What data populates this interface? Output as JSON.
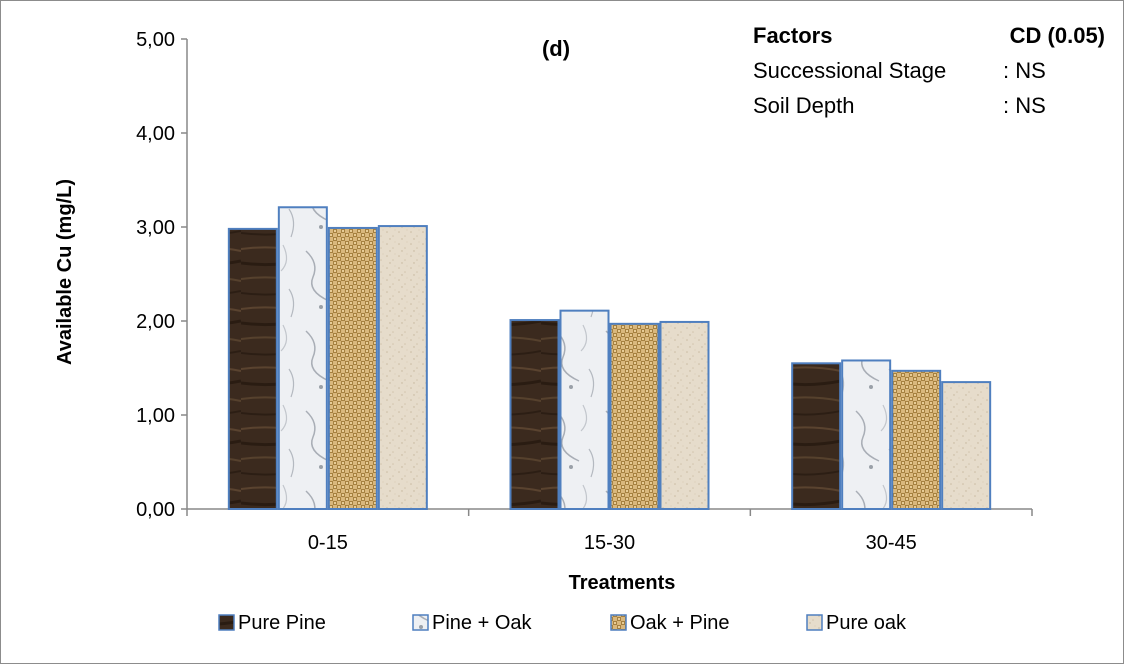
{
  "chart_data": {
    "type": "bar",
    "panel_label": "(d)",
    "xlabel": "Treatments",
    "ylabel": "Available Cu (mg/L)",
    "categories": [
      "0-15",
      "15-30",
      "30-45"
    ],
    "ylim": [
      0,
      5
    ],
    "yticks": [
      "0,00",
      "1,00",
      "2,00",
      "3,00",
      "4,00",
      "5,00"
    ],
    "grid": false,
    "legend_position": "bottom",
    "series": [
      {
        "name": "Pure Pine",
        "values": [
          2.98,
          2.01,
          1.55
        ],
        "color": "#3b2a1e",
        "pattern": "dark-wood"
      },
      {
        "name": "Pine + Oak",
        "values": [
          3.21,
          2.11,
          1.58
        ],
        "color": "#eef0f3",
        "pattern": "marble"
      },
      {
        "name": "Oak + Pine",
        "values": [
          2.99,
          1.97,
          1.47
        ],
        "color": "#c9a66b",
        "pattern": "woven"
      },
      {
        "name": "Pure oak",
        "values": [
          3.01,
          1.99,
          1.35
        ],
        "color": "#e6dccb",
        "pattern": "sand"
      }
    ],
    "annotation": {
      "header_left": "Factors",
      "header_right": "CD (0.05)",
      "rows": [
        {
          "label": "Successional Stage",
          "value": ": NS"
        },
        {
          "label": "Soil Depth",
          "value": ": NS"
        }
      ]
    }
  }
}
